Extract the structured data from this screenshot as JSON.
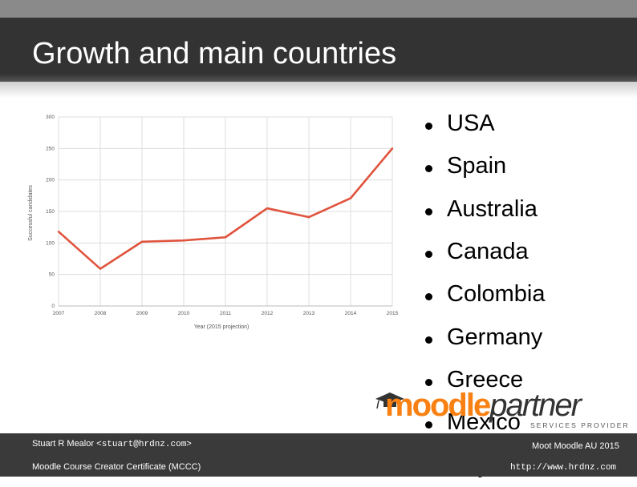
{
  "slide": {
    "title": "Growth and main countries",
    "countries": [
      "USA",
      "Spain",
      "Australia",
      "Canada",
      "Colombia",
      "Germany",
      "Greece",
      "Mexico",
      "Italy"
    ]
  },
  "logo": {
    "moodle": "moodle",
    "partner": "partner",
    "tagline": "SERVICES PROVIDER"
  },
  "footer": {
    "author_name": "Stuart R Mealor",
    "author_email": "<stuart@hrdnz.com>",
    "certificate": "Moodle Course Creator Certificate (MCCC)",
    "event": "Moot Moodle AU 2015",
    "url": "http://www.hrdnz.com"
  },
  "chart_data": {
    "type": "line",
    "title": "",
    "xlabel": "Year (2015 projection)",
    "ylabel": "Successful candidates",
    "x": [
      "2007",
      "2008",
      "2009",
      "2010",
      "2011",
      "2012",
      "2013",
      "2014",
      "2015"
    ],
    "series": [
      {
        "values": [
          118,
          59,
          102,
          104,
          109,
          155,
          141,
          171,
          250
        ],
        "color": "#e0533d"
      }
    ],
    "ylim": [
      0,
      300
    ],
    "yticks": [
      0,
      50,
      100,
      150,
      200,
      250,
      300
    ],
    "grid": true,
    "legend": "none"
  }
}
